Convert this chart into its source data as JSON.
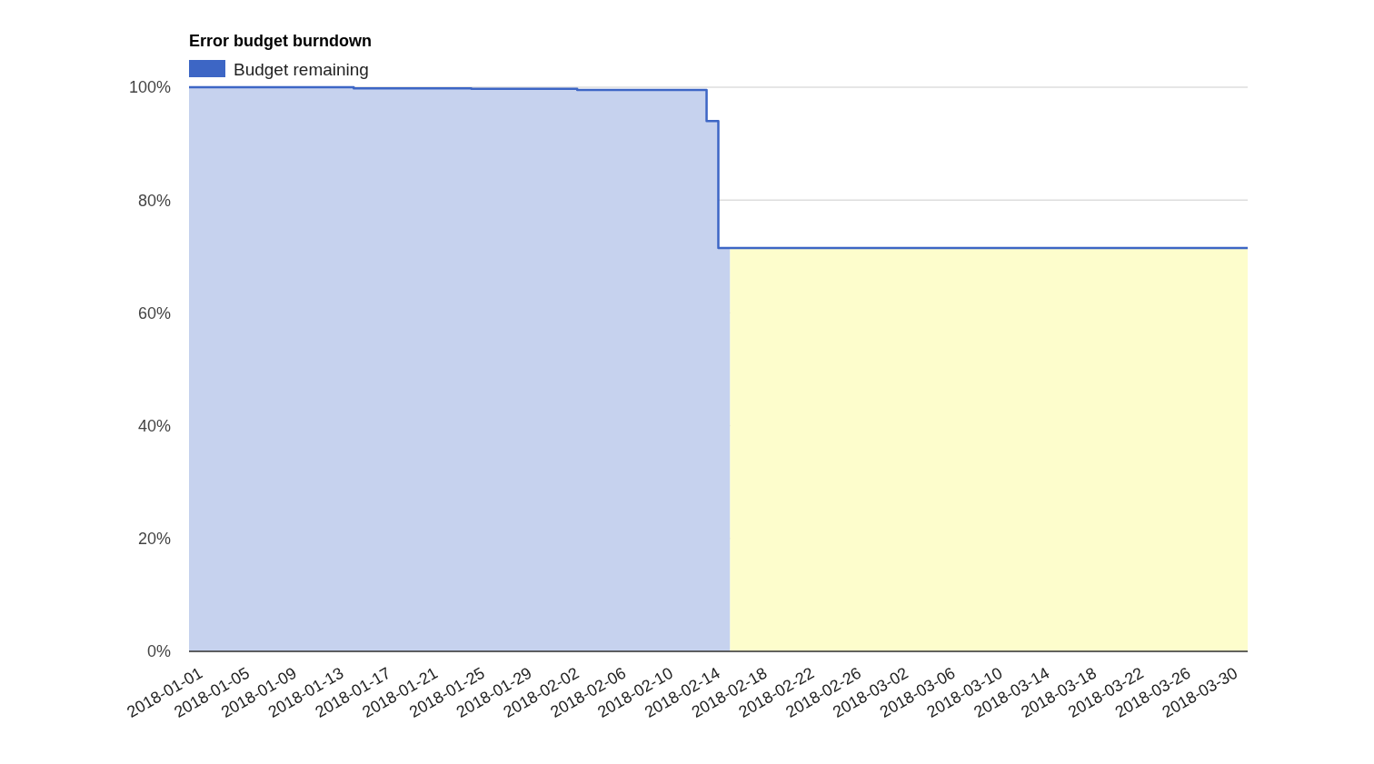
{
  "chart_data": {
    "type": "step",
    "title": "Error budget burndown",
    "xlim": [
      "2017-12-31",
      "2018-03-31"
    ],
    "xticks": [
      "2018-01-01",
      "2018-01-05",
      "2018-01-09",
      "2018-01-13",
      "2018-01-17",
      "2018-01-21",
      "2018-01-25",
      "2018-01-29",
      "2018-02-02",
      "2018-02-06",
      "2018-02-10",
      "2018-02-14",
      "2018-02-18",
      "2018-02-22",
      "2018-02-26",
      "2018-03-02",
      "2018-03-06",
      "2018-03-10",
      "2018-03-14",
      "2018-03-18",
      "2018-03-22",
      "2018-03-26",
      "2018-03-30"
    ],
    "ylim": [
      0,
      100
    ],
    "yticks": [
      {
        "value": 0,
        "label": "0%"
      },
      {
        "value": 20,
        "label": "20%"
      },
      {
        "value": 40,
        "label": "40%"
      },
      {
        "value": 60,
        "label": "60%"
      },
      {
        "value": 80,
        "label": "80%"
      },
      {
        "value": 100,
        "label": "100%"
      }
    ],
    "grid": "y",
    "legend": "top left",
    "series": [
      {
        "type": "area",
        "color": "#c6d2ee",
        "x": [
          "2017-12-31",
          "2018-01-14",
          "2018-01-24",
          "2018-02-02",
          "2018-02-13",
          "2018-02-14",
          "2018-02-15"
        ],
        "values": [
          100,
          99.8,
          99.7,
          99.5,
          94,
          71.5,
          71.5
        ]
      },
      {
        "type": "area",
        "color": "#fdfdcc",
        "x": [
          "2018-02-15",
          "2018-03-31"
        ],
        "values": [
          71.5,
          71.5
        ]
      },
      {
        "name": "Budget remaining",
        "color": "#3d66c5",
        "x": [
          "2017-12-31",
          "2018-01-14",
          "2018-01-24",
          "2018-02-02",
          "2018-02-13",
          "2018-02-14",
          "2018-03-31"
        ],
        "values": [
          100,
          99.8,
          99.7,
          99.5,
          94,
          71.5,
          71.5
        ]
      }
    ]
  }
}
